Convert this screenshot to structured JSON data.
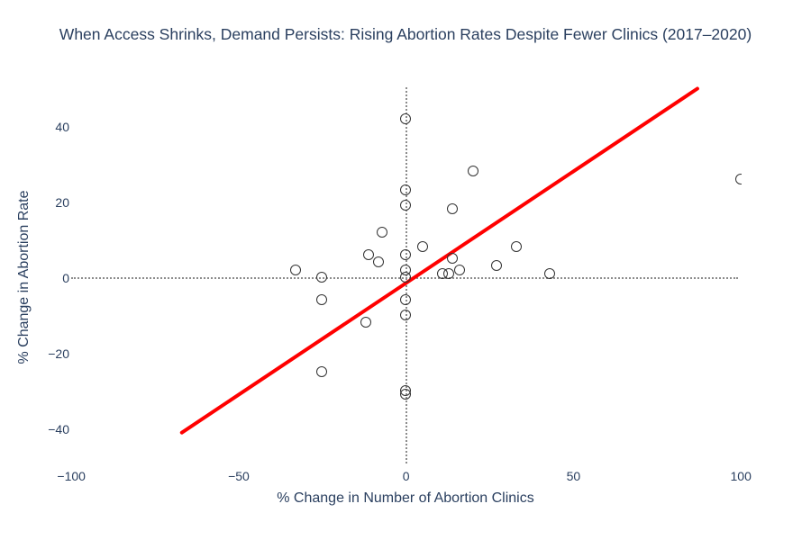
{
  "title": "When Access Shrinks, Demand Persists: Rising Abortion Rates Despite Fewer Clinics (2017–2020)",
  "colors": {
    "text": "#2a3f5f",
    "marker_outline": "#333333",
    "trend_line": "#ff0000",
    "zero_line": "#8c8c8c",
    "background": "#ffffff"
  },
  "chart_data": {
    "type": "scatter",
    "title": "When Access Shrinks, Demand Persists: Rising Abortion Rates Despite Fewer Clinics (2017–2020)",
    "xlabel": "% Change in Number of Abortion Clinics",
    "ylabel": "% Change in Abortion Rate",
    "xlim": [
      -105,
      101
    ],
    "ylim": [
      -50,
      50
    ],
    "grid": false,
    "legend": "none",
    "marker_style": "open-circle",
    "x_ticks": [
      {
        "value": -100,
        "label": "−100"
      },
      {
        "value": -50,
        "label": "−50"
      },
      {
        "value": 0,
        "label": "0"
      },
      {
        "value": 50,
        "label": "50"
      },
      {
        "value": 100,
        "label": "100"
      }
    ],
    "y_ticks": [
      {
        "value": 40,
        "label": "40"
      },
      {
        "value": 20,
        "label": "20"
      },
      {
        "value": 0,
        "label": "0"
      },
      {
        "value": -20,
        "label": "−20"
      },
      {
        "value": -40,
        "label": "−40"
      }
    ],
    "points": [
      {
        "x": -33,
        "y": 2
      },
      {
        "x": -25,
        "y": 0
      },
      {
        "x": -25,
        "y": -6
      },
      {
        "x": -25,
        "y": -25
      },
      {
        "x": -12,
        "y": -12
      },
      {
        "x": -11,
        "y": 6
      },
      {
        "x": -8,
        "y": 4
      },
      {
        "x": -7,
        "y": 12
      },
      {
        "x": 0,
        "y": 42
      },
      {
        "x": 0,
        "y": 23
      },
      {
        "x": 0,
        "y": 19
      },
      {
        "x": 0,
        "y": 6
      },
      {
        "x": 0,
        "y": 2
      },
      {
        "x": 0,
        "y": 0
      },
      {
        "x": 0,
        "y": -6
      },
      {
        "x": 0,
        "y": -10
      },
      {
        "x": 0,
        "y": -30
      },
      {
        "x": 0,
        "y": -31
      },
      {
        "x": 5,
        "y": 8
      },
      {
        "x": 11,
        "y": 1
      },
      {
        "x": 13,
        "y": 1
      },
      {
        "x": 14,
        "y": 5
      },
      {
        "x": 14,
        "y": 18
      },
      {
        "x": 16,
        "y": 2
      },
      {
        "x": 20,
        "y": 28
      },
      {
        "x": 27,
        "y": 3
      },
      {
        "x": 33,
        "y": 8
      },
      {
        "x": 43,
        "y": 1
      },
      {
        "x": 100,
        "y": 26
      }
    ],
    "trend_line": {
      "x1": -67,
      "y1": -41,
      "x2": 87,
      "y2": 50,
      "color": "#ff0000"
    },
    "zero_lines": {
      "horizontal_y": 0,
      "vertical_x": 0,
      "style": "dotted"
    }
  }
}
